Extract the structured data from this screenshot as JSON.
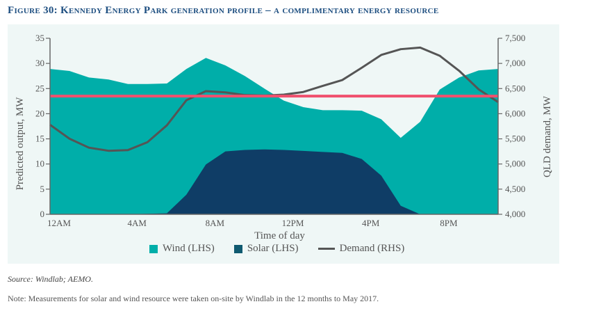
{
  "title": "Figure 30: Kennedy Energy Park generation profile – a complimentary energy resource",
  "source": "Source: Windlab; AEMO.",
  "note": "Note: Measurements for solar and wind resource were taken on-site by Windlab in the 12 months to May 2017.",
  "colors": {
    "wind": "#00aea9",
    "solar": "#0f3d66",
    "demand": "#555555",
    "reference_line": "#f0506e",
    "panel": "#eff7f6",
    "title": "#1d4e80"
  },
  "chart_data": {
    "type": "area",
    "title": "",
    "xlabel": "Time of day",
    "ylabel": "Predicted output, MW",
    "y2label": "QLD demand, MW",
    "ylim": [
      0,
      35
    ],
    "y2lim": [
      4000,
      7500
    ],
    "yticks": [
      "0",
      "5",
      "10",
      "15",
      "20",
      "25",
      "30",
      "35"
    ],
    "y2ticks": [
      "4,000",
      "4,500",
      "5,000",
      "5,500",
      "6,000",
      "6,500",
      "7,000",
      "7,500"
    ],
    "xtick_labels": [
      "12AM",
      "4AM",
      "8AM",
      "12PM",
      "4PM",
      "8PM"
    ],
    "x": [
      0,
      1,
      2,
      3,
      4,
      5,
      6,
      7,
      8,
      9,
      10,
      11,
      12,
      13,
      14,
      15,
      16,
      17,
      18,
      19,
      20,
      21,
      22,
      23
    ],
    "stacked_total_note": "",
    "series": [
      {
        "name": "Wind (LHS)",
        "kind": "area",
        "axis": "left",
        "stack_top": [
          28.9,
          28.5,
          27.2,
          26.8,
          25.9,
          25.9,
          26.0,
          28.9,
          31.1,
          29.6,
          27.5,
          25.0,
          22.6,
          21.3,
          20.7,
          20.7,
          20.6,
          18.9,
          15.2,
          18.4,
          24.8,
          27.2,
          28.6,
          28.9
        ]
      },
      {
        "name": "Solar (LHS)",
        "kind": "area",
        "axis": "left",
        "values": [
          0,
          0,
          0,
          0,
          0,
          0.1,
          0.2,
          3.9,
          9.9,
          12.5,
          12.8,
          12.9,
          12.8,
          12.6,
          12.4,
          12.2,
          11.0,
          7.7,
          1.7,
          0,
          0,
          0,
          0,
          0
        ]
      },
      {
        "name": "Demand (RHS)",
        "kind": "line",
        "axis": "right",
        "values": [
          5780,
          5503,
          5324,
          5263,
          5277,
          5434,
          5770,
          6268,
          6448,
          6425,
          6370,
          6360,
          6380,
          6432,
          6554,
          6669,
          6914,
          7168,
          7283,
          7315,
          7153,
          6853,
          6485,
          6231
        ]
      }
    ],
    "reference_line": {
      "axis": "left",
      "value": 23.5
    },
    "legend": {
      "placement": "bottom",
      "items": [
        "Wind (LHS)",
        "Solar (LHS)",
        "Demand (RHS)"
      ]
    },
    "grid": false
  }
}
